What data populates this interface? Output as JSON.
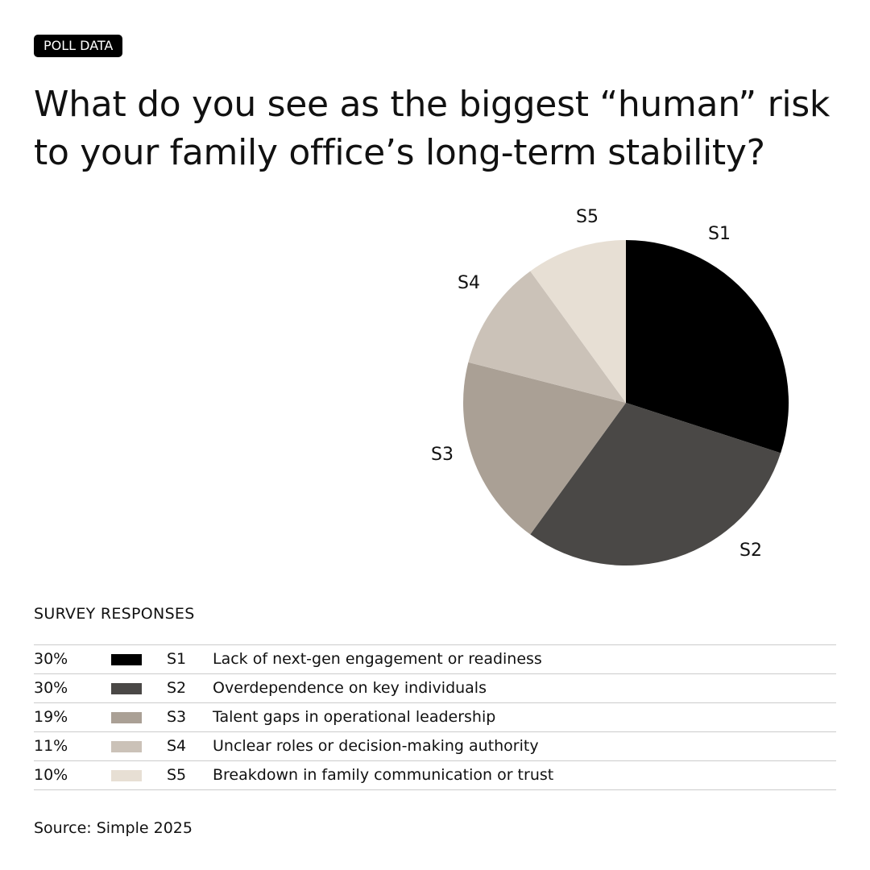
{
  "badge": "POLL DATA",
  "title": "What do you see as the biggest “human” risk to your family office’s long-term stability?",
  "legend_title": "SURVEY RESPONSES",
  "source": "Source: Simple 2025",
  "chart_data": {
    "type": "pie",
    "title": "What do you see as the biggest “human” risk to your family office’s long-term stability?",
    "start": "top, clockwise",
    "series": [
      {
        "code": "S1",
        "label": "Lack of next-gen engagement or readiness",
        "value": 30,
        "pct": "30%",
        "color": "#000000"
      },
      {
        "code": "S2",
        "label": "Overdependence on key individuals",
        "value": 30,
        "pct": "30%",
        "color": "#4a4846"
      },
      {
        "code": "S3",
        "label": "Talent gaps in operational leadership",
        "value": 19,
        "pct": "19%",
        "color": "#aaa095"
      },
      {
        "code": "S4",
        "label": "Unclear roles or decision-making authority",
        "value": 11,
        "pct": "11%",
        "color": "#cbc2b8"
      },
      {
        "code": "S5",
        "label": "Breakdown in family communication or trust",
        "value": 10,
        "pct": "10%",
        "color": "#e7dfd4"
      }
    ]
  }
}
